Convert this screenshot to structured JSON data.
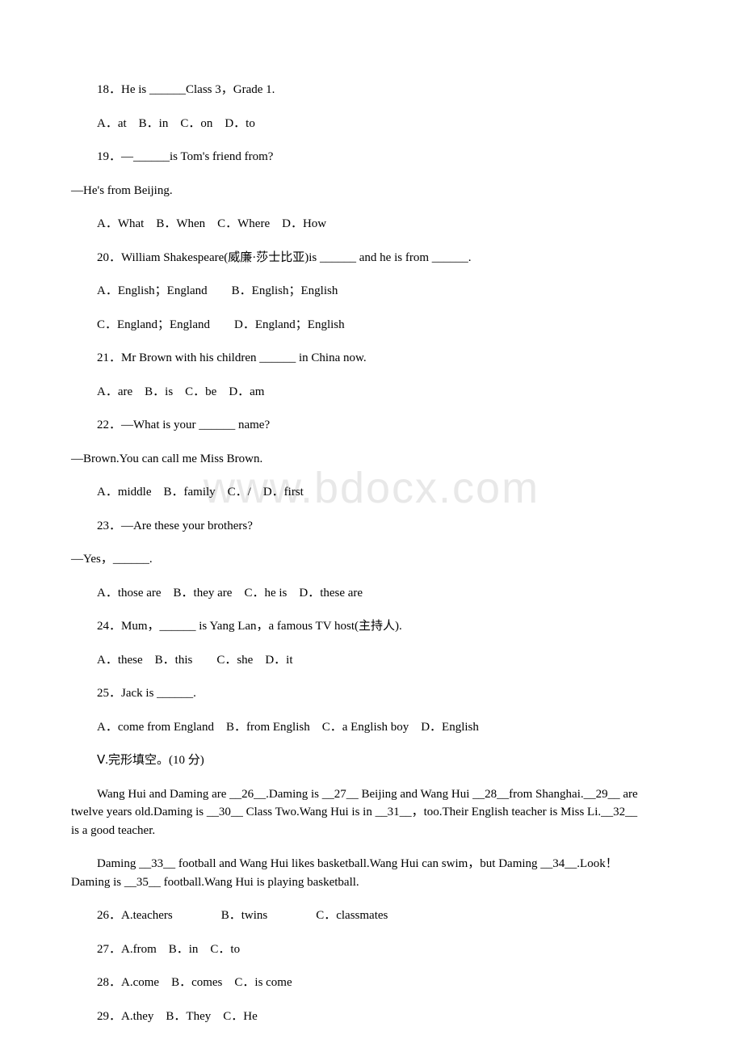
{
  "watermark": "www.bdocx.com",
  "questions": [
    {
      "text": "18．He is ______Class 3，Grade 1.",
      "options": "A．at　B．in　C．on　D．to"
    },
    {
      "text": "19．—______is Tom's friend from?",
      "response": "—He's from Beijing.",
      "options": "A．What　B．When　C．Where　D．How"
    },
    {
      "text": "20．William Shakespeare(威廉·莎士比亚)is ______ and he is from ______.",
      "options": "A．English；England　　B．English；English",
      "options2": "C．England；England　　D．England；English"
    },
    {
      "text": "21．Mr Brown with his children ______ in China now.",
      "options": "A．are　B．is　C．be　D．am"
    },
    {
      "text": "22．—What is your ______ name?",
      "response": "—Brown.You can call me Miss Brown.",
      "options": "A．middle　B．family　C．/　D．first"
    },
    {
      "text": "23．—Are these your brothers?",
      "response": "—Yes，______.",
      "options": "A．those are　B．they are　C．he is　D．these are"
    },
    {
      "text": "24．Mum，______ is Yang Lan，a famous TV host(主持人).",
      "options": "A．these　B．this　　C．she　D．it"
    },
    {
      "text": "25．Jack is ______.",
      "options": "A．come from England　B．from English　C．a English boy　D．English"
    }
  ],
  "section_header": "Ⅴ.完形填空。(10 分)",
  "cloze": {
    "para1": "Wang Hui and Daming are __26__.Daming is __27__ Beijing and Wang Hui __28__from Shanghai.__29__ are twelve years old.Daming is __30__ Class Two.Wang Hui is in __31__，too.Their English teacher is Miss Li.__32__ is a good teacher.",
    "para2": "Daming __33__ football and Wang Hui likes basketball.Wang Hui can swim，but Daming __34__.Look！Daming is __35__ football.Wang Hui is playing basketball."
  },
  "cloze_options": [
    "26．A.teachers　　　　B．twins　　　　C．classmates",
    "27．A.from　B．in　C．to",
    "28．A.come　B．comes　C．is come",
    "29．A.they　B．They　C．He"
  ]
}
